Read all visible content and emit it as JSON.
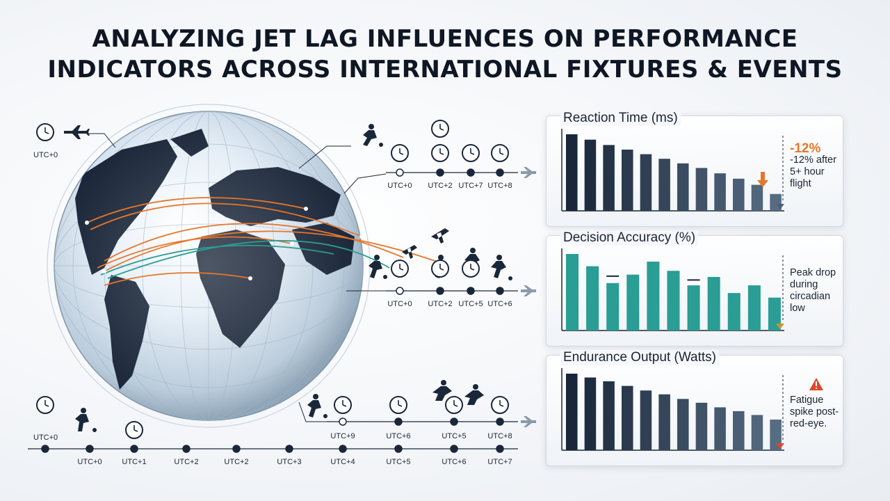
{
  "title_line1": "ANALYZING JET LAG INFLUENCES ON PERFORMANCE",
  "title_line2": "INDICATORS ACROSS INTERNATIONAL FIXTURES & EVENTS",
  "colors": {
    "navy": "#1a2639",
    "teal": "#2a9d94",
    "orange": "#e8762a",
    "slate": "#4b6075"
  },
  "map_labels": {
    "top_left": "UTC+0",
    "left_mid": "UTC+0",
    "row1": [
      "UTC+0",
      "UTC+2",
      "UTC+7",
      "UTC+8"
    ],
    "row2": [
      "UTC+0",
      "UTC+2",
      "UTC+5",
      "UTC+6"
    ],
    "row3": [
      "UTC+9",
      "UTC+6",
      "UTC+5",
      "UTC+8"
    ],
    "bottom": [
      "UTC+0",
      "UTC+1",
      "UTC+2",
      "UTC+2",
      "UTC+3",
      "UTC+4",
      "UTC+5",
      "UTC+6",
      "UTC+7"
    ]
  },
  "chart_data": [
    {
      "type": "bar",
      "title": "Reaction Time (ms)",
      "values": [
        100,
        93,
        86,
        80,
        74,
        68,
        62,
        56,
        49,
        42,
        34,
        22
      ],
      "annotation_main": "-12%",
      "annotation_sub": "-12% after 5+ hour flight"
    },
    {
      "type": "bar",
      "title": "Decision Accuracy (%)",
      "values": [
        100,
        84,
        62,
        73,
        90,
        78,
        59,
        70,
        49,
        59,
        43
      ],
      "markers": [
        {
          "bar": 2,
          "value": 71
        },
        {
          "bar": 6,
          "value": 66
        }
      ],
      "annotation_sub": "Peak drop during circadian low"
    },
    {
      "type": "bar",
      "title": "Endurance Output (Watts)",
      "values": [
        100,
        95,
        90,
        84,
        78,
        73,
        67,
        62,
        56,
        51,
        46,
        40
      ],
      "annotation_sub": "Fatigue spike post-red-eye."
    }
  ]
}
